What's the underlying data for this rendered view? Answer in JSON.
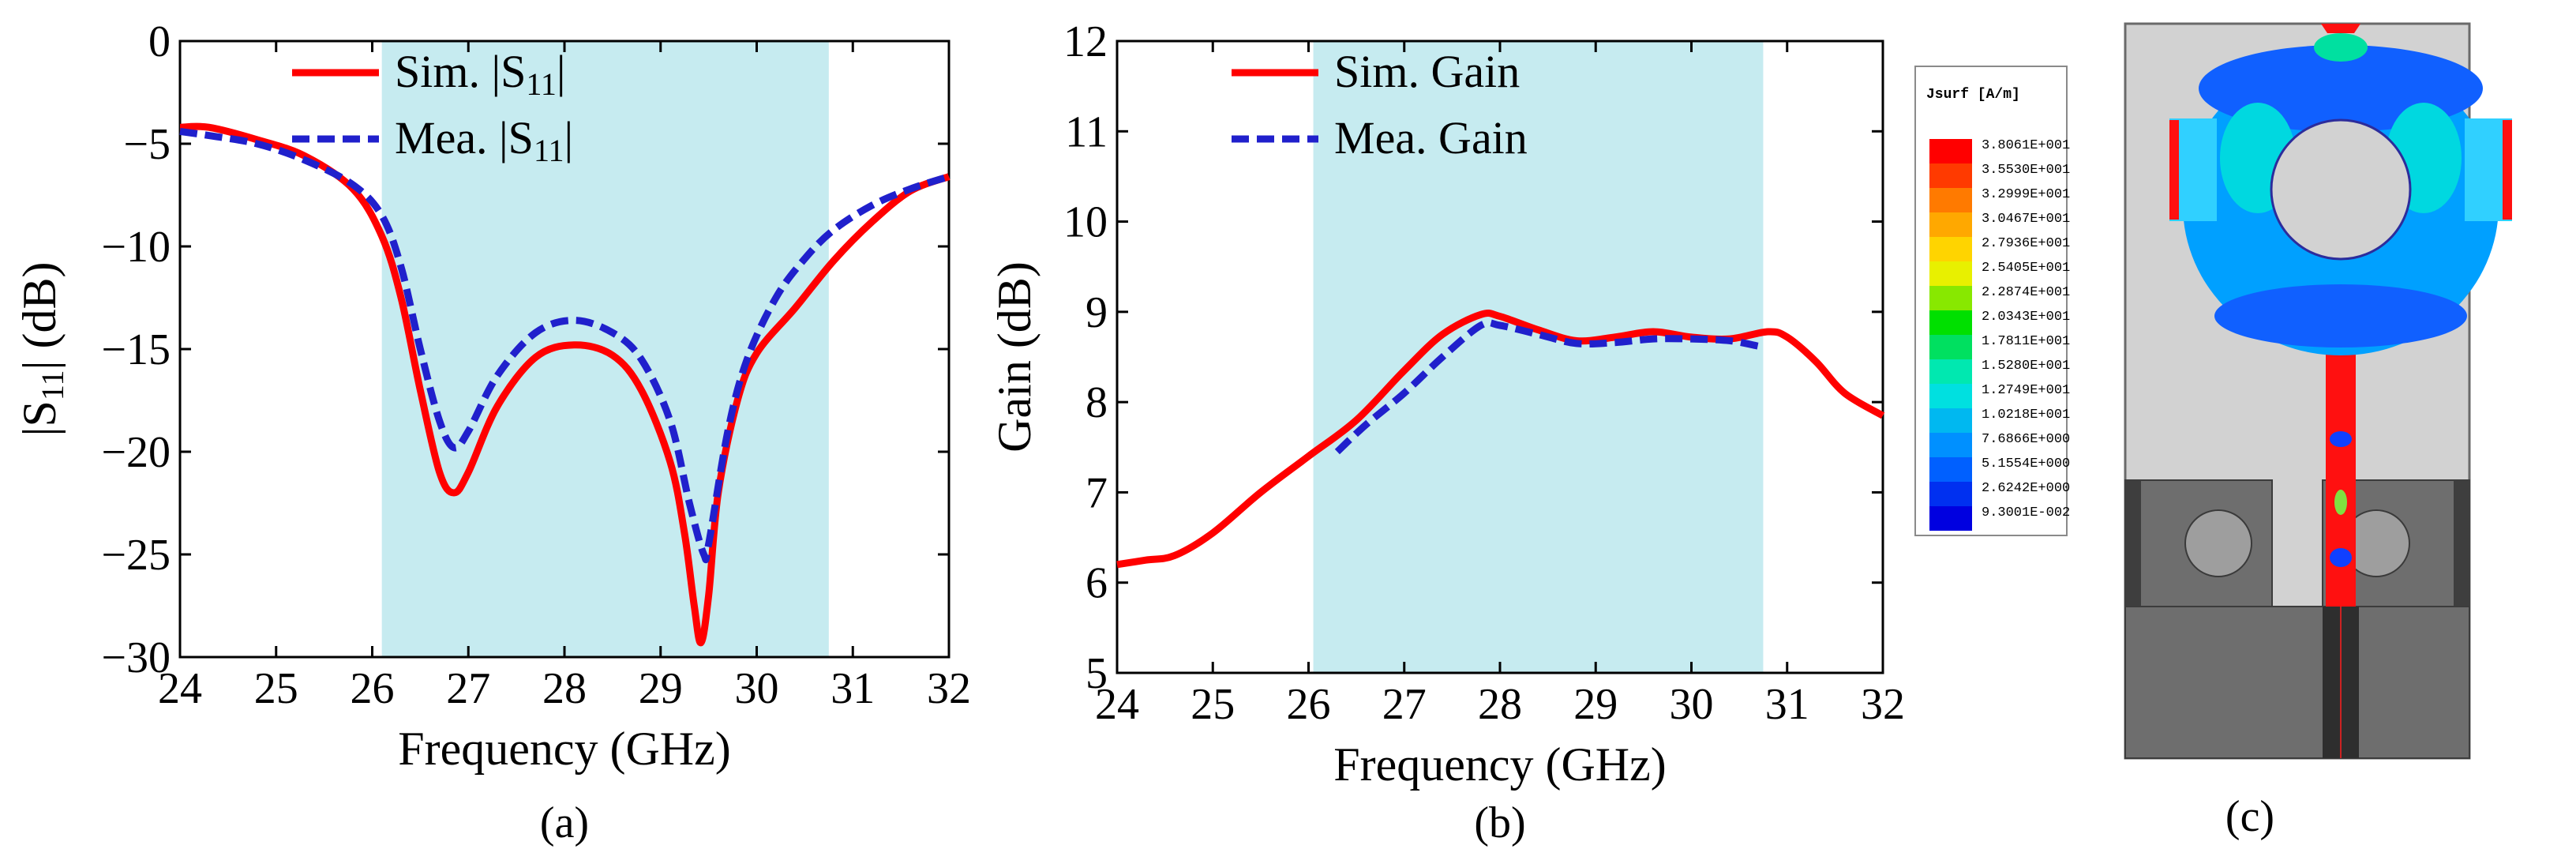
{
  "chart_data": [
    {
      "type": "line",
      "panel_label": "(a)",
      "xlabel": "Frequency (GHz)",
      "ylabel": "|S11| (dB)",
      "ylabel_main": "|S",
      "ylabel_sub": "11",
      "ylabel_tail": "| (dB)",
      "xlim": [
        24,
        32
      ],
      "ylim": [
        -30,
        0
      ],
      "xticks": [
        "24",
        "25",
        "26",
        "27",
        "28",
        "29",
        "30",
        "31",
        "32"
      ],
      "yticks": [
        "0",
        "-5",
        "-10",
        "-15",
        "-20",
        "-25",
        "-30"
      ],
      "band": [
        26.1,
        30.75
      ],
      "band_color": "#c6ebf0",
      "legend": [
        {
          "name": "Sim. |S11|",
          "text": "Sim. |S",
          "sub": "11",
          "tail": "|"
        },
        {
          "name": "Mea. |S11|",
          "text": "Mea. |S",
          "sub": "11",
          "tail": "|"
        }
      ],
      "series": [
        {
          "name": "Sim. |S11|",
          "color": "#ff0000",
          "style": "solid",
          "x": [
            24,
            24.3,
            24.8,
            25.3,
            25.8,
            26.1,
            26.3,
            26.5,
            26.7,
            26.85,
            27.0,
            27.3,
            27.7,
            28.1,
            28.5,
            28.8,
            29.1,
            29.25,
            29.35,
            29.42,
            29.5,
            29.6,
            29.8,
            30.0,
            30.4,
            30.8,
            31.2,
            31.6,
            32.0
          ],
          "y": [
            -4.2,
            -4.2,
            -4.8,
            -5.6,
            -7.2,
            -9.5,
            -12.5,
            -17.0,
            -21.0,
            -22.0,
            -21.0,
            -17.8,
            -15.4,
            -14.8,
            -15.3,
            -17.0,
            -20.5,
            -24.0,
            -27.5,
            -29.3,
            -27.0,
            -22.0,
            -17.5,
            -15.2,
            -13.0,
            -10.7,
            -8.8,
            -7.3,
            -6.6
          ]
        },
        {
          "name": "Mea. |S11|",
          "color": "#2020cc",
          "style": "dashed",
          "x": [
            24,
            24.3,
            24.8,
            25.3,
            25.8,
            26.1,
            26.3,
            26.5,
            26.7,
            26.85,
            27.0,
            27.3,
            27.7,
            28.1,
            28.5,
            28.8,
            29.1,
            29.3,
            29.45,
            29.5,
            29.7,
            29.9,
            30.2,
            30.5,
            30.8,
            31.2,
            31.6,
            32.0
          ],
          "y": [
            -4.4,
            -4.6,
            -5.0,
            -5.8,
            -7.0,
            -8.5,
            -11.0,
            -15.0,
            -18.5,
            -19.8,
            -19.0,
            -16.3,
            -14.2,
            -13.6,
            -14.2,
            -15.5,
            -18.5,
            -22.5,
            -25.0,
            -24.5,
            -19.0,
            -15.5,
            -12.5,
            -10.6,
            -9.2,
            -8.0,
            -7.2,
            -6.6
          ]
        }
      ]
    },
    {
      "type": "line",
      "panel_label": "(b)",
      "xlabel": "Frequency (GHz)",
      "ylabel": "Gain (dB)",
      "xlim": [
        24,
        32
      ],
      "ylim": [
        5,
        12
      ],
      "xticks": [
        "24",
        "25",
        "26",
        "27",
        "28",
        "29",
        "30",
        "31",
        "32"
      ],
      "yticks": [
        "5",
        "6",
        "7",
        "8",
        "9",
        "10",
        "11",
        "12"
      ],
      "band": [
        26.05,
        30.75
      ],
      "band_color": "#c6ebf0",
      "legend": [
        {
          "name": "Sim. Gain",
          "text": "Sim. Gain"
        },
        {
          "name": "Mea. Gain",
          "text": "Mea. Gain"
        }
      ],
      "series": [
        {
          "name": "Sim. Gain",
          "color": "#ff0000",
          "style": "solid",
          "x": [
            24.0,
            24.3,
            24.6,
            25.0,
            25.5,
            26.0,
            26.5,
            27.0,
            27.4,
            27.8,
            28.0,
            28.4,
            28.8,
            29.2,
            29.6,
            30.0,
            30.4,
            30.8,
            31.0,
            31.3,
            31.6,
            32.0
          ],
          "y": [
            6.2,
            6.25,
            6.3,
            6.55,
            7.0,
            7.4,
            7.8,
            8.35,
            8.75,
            8.97,
            8.95,
            8.8,
            8.68,
            8.72,
            8.78,
            8.72,
            8.7,
            8.78,
            8.72,
            8.45,
            8.1,
            7.85
          ]
        },
        {
          "name": "Mea. Gain",
          "color": "#2020cc",
          "style": "dashed",
          "x": [
            26.3,
            26.6,
            27.0,
            27.4,
            27.8,
            28.0,
            28.4,
            28.8,
            29.2,
            29.6,
            30.0,
            30.4,
            30.7
          ],
          "y": [
            7.45,
            7.75,
            8.1,
            8.5,
            8.85,
            8.85,
            8.75,
            8.65,
            8.66,
            8.7,
            8.7,
            8.68,
            8.62
          ]
        }
      ]
    }
  ],
  "panel_c": {
    "label": "(c)",
    "legend_title": "Jsurf [A/m]",
    "legend_values": [
      "3.8061E+001",
      "3.5530E+001",
      "3.2999E+001",
      "3.0467E+001",
      "2.7936E+001",
      "2.5405E+001",
      "2.2874E+001",
      "2.0343E+001",
      "1.7811E+001",
      "1.5280E+001",
      "1.2749E+001",
      "1.0218E+001",
      "7.6866E+000",
      "5.1554E+000",
      "2.6242E+000",
      "9.3001E-002"
    ],
    "legend_colors": [
      "#ff0000",
      "#ff3a00",
      "#ff7a00",
      "#ffa800",
      "#ffd400",
      "#e8f000",
      "#88e800",
      "#00e000",
      "#00e060",
      "#00e8b0",
      "#00e0e0",
      "#00b8f0",
      "#0090ff",
      "#0060ff",
      "#0030f0",
      "#0000e0"
    ]
  }
}
